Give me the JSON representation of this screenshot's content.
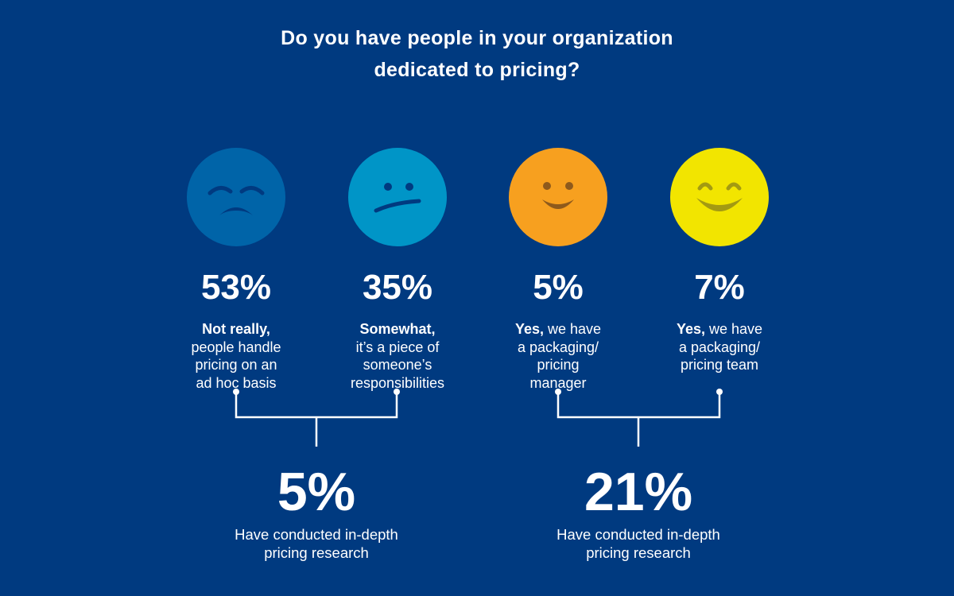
{
  "title": {
    "line1": "Do you have people in your organization",
    "line2": "dedicated to pricing?"
  },
  "responses": [
    {
      "icon": "sad-face-icon",
      "color": "#0064A8",
      "percent": "53%",
      "bold": "Not really,",
      "lines": [
        "people handle",
        "pricing on an",
        "ad hoc basis"
      ]
    },
    {
      "icon": "neutral-face-icon",
      "color": "#0095C7",
      "percent": "35%",
      "bold": "Somewhat,",
      "lines": [
        "it’s a piece of",
        "someone’s",
        "responsibilities"
      ]
    },
    {
      "icon": "smiling-face-icon",
      "color": "#F7A01F",
      "percent": "5%",
      "bold": "Yes,",
      "first_rest": " we have",
      "lines": [
        "a packaging/",
        "pricing",
        "manager"
      ]
    },
    {
      "icon": "happy-face-icon",
      "color": "#F2E500",
      "percent": "7%",
      "bold": "Yes,",
      "first_rest": " we have",
      "lines": [
        "a packaging/",
        "pricing team"
      ]
    }
  ],
  "summaries": [
    {
      "percent": "5%",
      "line1": "Have conducted in-depth",
      "line2": "pricing research"
    },
    {
      "percent": "21%",
      "line1": "Have conducted in-depth",
      "line2": "pricing research"
    }
  ],
  "colors": {
    "background": "#003A80",
    "text": "#FFFFFF"
  }
}
